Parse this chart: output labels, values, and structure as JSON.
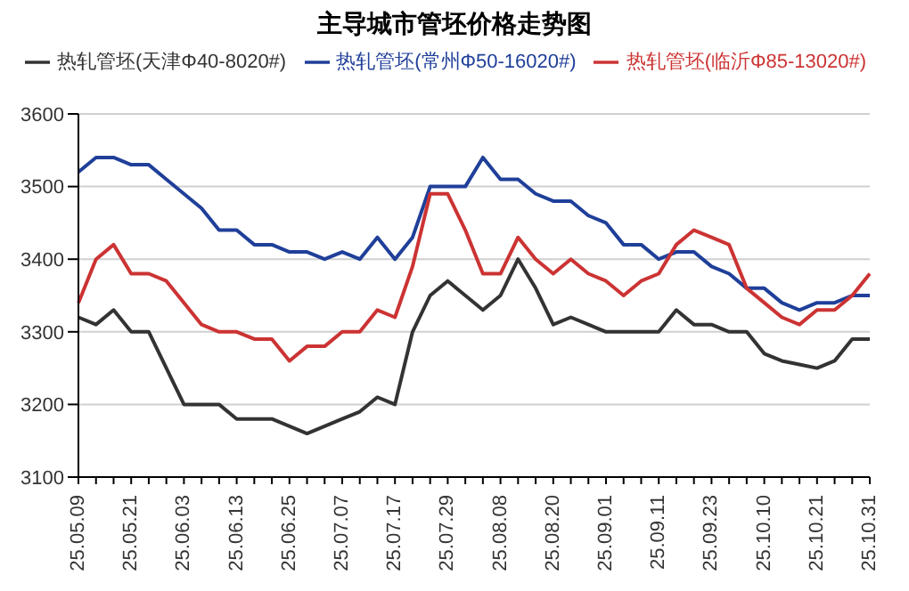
{
  "chart_data": {
    "type": "line",
    "title": "主导城市管坯价格走势图",
    "categories": [
      "25.05.09",
      null,
      null,
      "25.05.21",
      null,
      null,
      "25.06.03",
      null,
      null,
      "25.06.13",
      null,
      null,
      "25.06.25",
      null,
      null,
      "25.07.07",
      null,
      null,
      "25.07.17",
      null,
      null,
      "25.07.29",
      null,
      null,
      "25.08.08",
      null,
      null,
      "25.08.20",
      null,
      null,
      "25.09.01",
      null,
      null,
      "25.09.11",
      null,
      null,
      "25.09.23",
      null,
      null,
      "25.10.10",
      null,
      null,
      "25.10.21",
      null,
      null,
      "25.10.31"
    ],
    "series": [
      {
        "name": "热轧管坯(天津Φ40-8020#)",
        "color": "#333333",
        "values": [
          3320,
          3310,
          3330,
          3300,
          3300,
          3250,
          3200,
          3200,
          3200,
          3180,
          3180,
          3180,
          3170,
          3160,
          3170,
          3180,
          3190,
          3210,
          3200,
          3300,
          3350,
          3370,
          3350,
          3330,
          3350,
          3400,
          3360,
          3310,
          3320,
          3310,
          3300,
          3300,
          3300,
          3300,
          3330,
          3310,
          3310,
          3300,
          3300,
          3270,
          3260,
          3255,
          3250,
          3260,
          3290,
          3290
        ]
      },
      {
        "name": "热轧管坯(常州Φ50-16020#)",
        "color": "#1f3f99",
        "values": [
          3520,
          3540,
          3540,
          3530,
          3530,
          3510,
          3490,
          3470,
          3440,
          3440,
          3420,
          3420,
          3410,
          3410,
          3400,
          3410,
          3400,
          3430,
          3400,
          3430,
          3500,
          3500,
          3500,
          3540,
          3510,
          3510,
          3490,
          3480,
          3480,
          3460,
          3450,
          3420,
          3420,
          3400,
          3410,
          3410,
          3390,
          3380,
          3360,
          3360,
          3340,
          3330,
          3340,
          3340,
          3350,
          3350
        ]
      },
      {
        "name": "热轧管坯(临沂Φ85-13020#)",
        "color": "#cc3333",
        "values": [
          3340,
          3400,
          3420,
          3380,
          3380,
          3370,
          3340,
          3310,
          3300,
          3300,
          3290,
          3290,
          3260,
          3280,
          3280,
          3300,
          3300,
          3330,
          3320,
          3390,
          3490,
          3490,
          3440,
          3380,
          3380,
          3430,
          3400,
          3380,
          3400,
          3380,
          3370,
          3350,
          3370,
          3380,
          3420,
          3440,
          3430,
          3420,
          3360,
          3340,
          3320,
          3310,
          3330,
          3330,
          3350,
          3380
        ]
      }
    ],
    "ylim": [
      3100,
      3600
    ],
    "yticks": [
      3100,
      3200,
      3300,
      3400,
      3500,
      3600
    ],
    "grid": "y",
    "legend": "top",
    "marker": "none",
    "line_style": "solid"
  }
}
